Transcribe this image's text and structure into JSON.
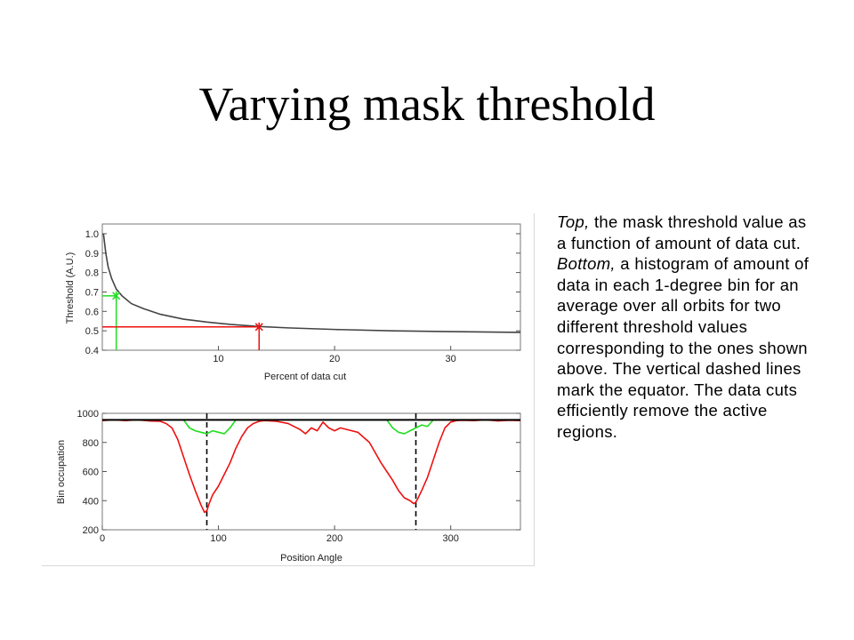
{
  "slide": {
    "title": "Varying mask threshold"
  },
  "caption": {
    "top_lead": "Top,",
    "top_text": " the mask threshold value as a function of amount of data cut.",
    "bottom_lead": "Bottom,",
    "bottom_text": " a histogram of amount of data in each 1-degree bin for an average over all orbits for two different threshold values corresponding to the ones shown above. The vertical dashed lines mark the equator. The data cuts efficiently remove the active regions."
  },
  "colors": {
    "curve": "#444444",
    "green": "#22dd22",
    "red": "#ee1111",
    "black": "#000000"
  },
  "chart_data": [
    {
      "type": "line",
      "xlabel": "Percent of data cut",
      "ylabel": "Threshold (A.U.)",
      "xlim": [
        0,
        36
      ],
      "ylim": [
        0.4,
        1.05
      ],
      "xticks": [
        10,
        20,
        30
      ],
      "yticks": [
        0.4,
        0.5,
        0.6,
        0.7,
        0.8,
        0.9,
        1.0
      ],
      "series": [
        {
          "color": "#444444",
          "x": [
            0.1,
            0.3,
            0.5,
            0.8,
            1.2,
            1.7,
            2.5,
            3.5,
            5,
            7,
            9,
            11,
            13.5,
            16,
            20,
            25,
            30,
            36
          ],
          "y": [
            1.0,
            0.9,
            0.83,
            0.77,
            0.715,
            0.68,
            0.64,
            0.615,
            0.585,
            0.56,
            0.545,
            0.533,
            0.522,
            0.515,
            0.507,
            0.5,
            0.496,
            0.492
          ]
        }
      ],
      "markers": [
        {
          "color": "#22dd22",
          "x": 1.2,
          "y": 0.68
        },
        {
          "color": "#ee1111",
          "x": 13.5,
          "y": 0.52
        }
      ]
    },
    {
      "type": "line",
      "xlabel": "Position Angle",
      "ylabel": "Bin occupation",
      "xlim": [
        0,
        360
      ],
      "ylim": [
        200,
        1000
      ],
      "xticks": [
        0,
        100,
        200,
        300
      ],
      "yticks": [
        200,
        400,
        600,
        800,
        1000
      ],
      "dashed_x": [
        90,
        270
      ],
      "series": [
        {
          "color": "#ee1111",
          "x": [
            0,
            10,
            20,
            30,
            40,
            50,
            55,
            60,
            65,
            70,
            75,
            80,
            85,
            88,
            90,
            92,
            95,
            100,
            105,
            110,
            115,
            120,
            125,
            130,
            135,
            140,
            150,
            160,
            170,
            175,
            180,
            185,
            190,
            195,
            200,
            205,
            210,
            220,
            230,
            240,
            245,
            250,
            255,
            260,
            265,
            268,
            270,
            272,
            275,
            280,
            285,
            290,
            295,
            300,
            305,
            310,
            320,
            330,
            340,
            350,
            360
          ],
          "y": [
            950,
            955,
            950,
            955,
            948,
            945,
            930,
            900,
            820,
            700,
            580,
            470,
            370,
            320,
            330,
            380,
            440,
            500,
            580,
            660,
            760,
            840,
            900,
            930,
            945,
            950,
            945,
            930,
            890,
            860,
            900,
            880,
            940,
            900,
            880,
            900,
            890,
            870,
            800,
            660,
            600,
            540,
            470,
            420,
            400,
            380,
            390,
            420,
            470,
            560,
            680,
            800,
            900,
            940,
            950,
            952,
            950,
            955,
            948,
            952,
            950
          ]
        },
        {
          "color": "#22dd22",
          "x": [
            0,
            70,
            75,
            80,
            85,
            90,
            95,
            100,
            105,
            110,
            115,
            245,
            250,
            255,
            260,
            265,
            270,
            275,
            280,
            285,
            360
          ],
          "y": [
            955,
            955,
            900,
            880,
            870,
            860,
            880,
            870,
            860,
            900,
            955,
            955,
            900,
            870,
            860,
            880,
            900,
            920,
            910,
            955,
            955
          ]
        },
        {
          "color": "#000000",
          "x": [
            0,
            360
          ],
          "y": [
            955,
            955
          ]
        }
      ]
    }
  ],
  "labels": {
    "top_ylabel": "Threshold (A.U.)",
    "top_xlabel": "Percent of data cut",
    "bot_ylabel": "Bin occupation",
    "bot_xlabel": "Position Angle"
  }
}
